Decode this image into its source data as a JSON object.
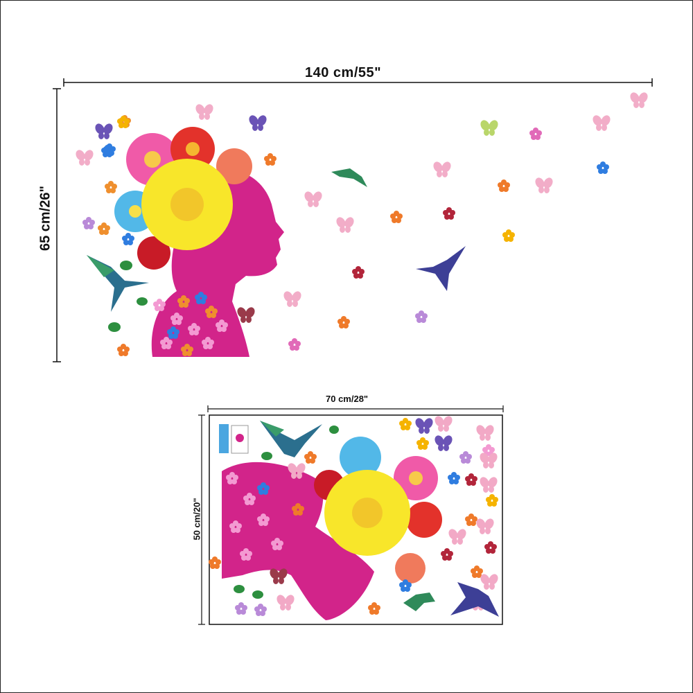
{
  "product": {
    "large_view": {
      "width_label": "140 cm/55\"",
      "height_label": "65 cm/26\""
    },
    "sheet_view": {
      "width_label": "70 cm/28\"",
      "height_label": "50 cm/20\""
    }
  },
  "colors": {
    "silhouette": "#d2248a",
    "daisy_yellow": "#f8e62a",
    "hummingbird": "#2b3f96",
    "butterfly": "#f2a9c6",
    "dimension_line": "#111111"
  }
}
